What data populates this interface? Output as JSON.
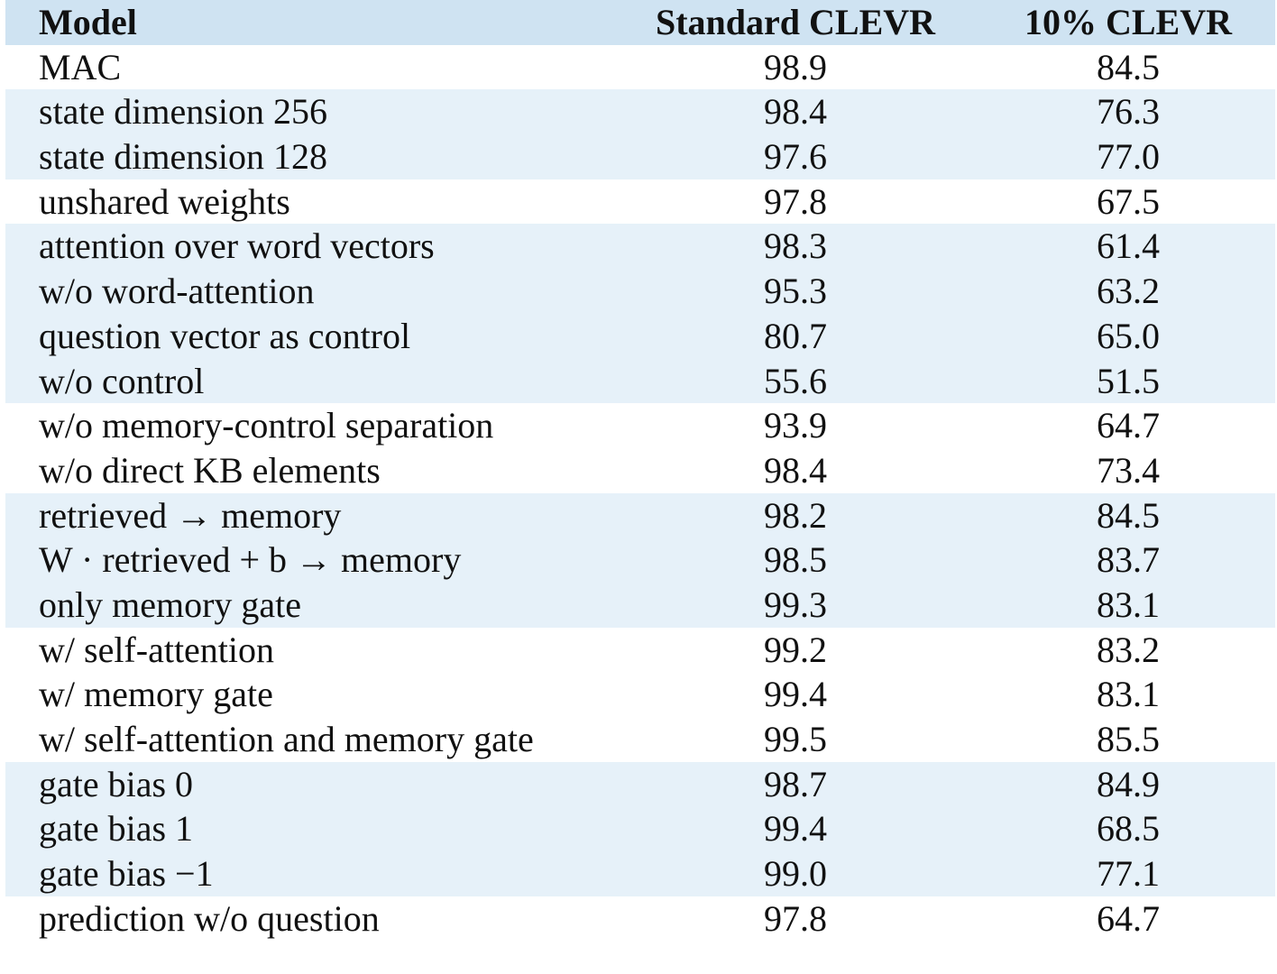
{
  "table": {
    "headers": {
      "model": "Model",
      "standard": "Standard CLEVR",
      "ten": "10% CLEVR"
    },
    "rows": [
      {
        "model": "MAC",
        "standard": "98.9",
        "ten": "84.5"
      },
      {
        "model": "state dimension 256",
        "standard": "98.4",
        "ten": "76.3"
      },
      {
        "model": "state dimension 128",
        "standard": "97.6",
        "ten": "77.0"
      },
      {
        "model": "unshared weights",
        "standard": "97.8",
        "ten": "67.5"
      },
      {
        "model": "attention over word vectors",
        "standard": "98.3",
        "ten": "61.4"
      },
      {
        "model": "w/o word-attention",
        "standard": "95.3",
        "ten": "63.2"
      },
      {
        "model": "question vector as control",
        "standard": "80.7",
        "ten": "65.0"
      },
      {
        "model": "w/o control",
        "standard": "55.6",
        "ten": "51.5"
      },
      {
        "model": "w/o memory-control separation",
        "standard": "93.9",
        "ten": "64.7"
      },
      {
        "model": "w/o direct KB elements",
        "standard": "98.4",
        "ten": "73.4"
      },
      {
        "model": "retrieved → memory",
        "standard": "98.2",
        "ten": "84.5"
      },
      {
        "model": "W · retrieved + b → memory",
        "standard": "98.5",
        "ten": "83.7"
      },
      {
        "model": "only memory gate",
        "standard": "99.3",
        "ten": "83.1"
      },
      {
        "model": "w/ self-attention",
        "standard": "99.2",
        "ten": "83.2"
      },
      {
        "model": "w/ memory gate",
        "standard": "99.4",
        "ten": "83.1"
      },
      {
        "model": "w/ self-attention and memory gate",
        "standard": "99.5",
        "ten": "85.5"
      },
      {
        "model": "gate bias 0",
        "standard": "98.7",
        "ten": "84.9"
      },
      {
        "model": "gate bias 1",
        "standard": "99.4",
        "ten": "68.5"
      },
      {
        "model": "gate bias −1",
        "standard": "99.0",
        "ten": "77.1"
      },
      {
        "model": "prediction w/o question",
        "standard": "97.8",
        "ten": "64.7"
      }
    ]
  }
}
